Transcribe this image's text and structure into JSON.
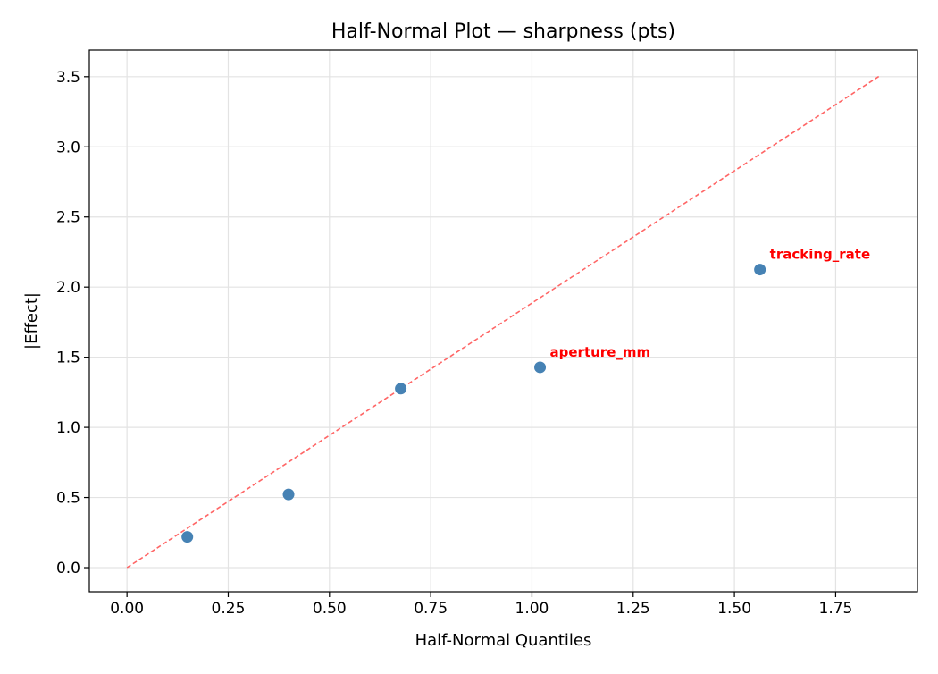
{
  "chart_data": {
    "type": "scatter",
    "title": "Half-Normal Plot — sharpness (pts)",
    "xlabel": "Half-Normal Quantiles",
    "ylabel": "|Effect|",
    "xlim": [
      -0.093,
      1.952
    ],
    "ylim": [
      -0.172,
      3.69
    ],
    "xticks": [
      "0.00",
      "0.25",
      "0.50",
      "0.75",
      "1.00",
      "1.25",
      "1.50",
      "1.75"
    ],
    "yticks": [
      "0.0",
      "0.5",
      "1.0",
      "1.5",
      "2.0",
      "2.5",
      "3.0",
      "3.5"
    ],
    "grid": true,
    "points": [
      {
        "x": 0.149,
        "y": 0.219,
        "label": ""
      },
      {
        "x": 0.399,
        "y": 0.522,
        "label": ""
      },
      {
        "x": 0.676,
        "y": 1.276,
        "label": ""
      },
      {
        "x": 1.02,
        "y": 1.428,
        "label": "aperture_mm"
      },
      {
        "x": 1.563,
        "y": 2.125,
        "label": "tracking_rate"
      }
    ],
    "reference_line": {
      "x": [
        0,
        1.862
      ],
      "y": [
        0,
        3.512
      ],
      "style": "dashed"
    },
    "colors": {
      "points": "#4682b4",
      "reference_line": "#ff6666",
      "labels": "#ff0000"
    }
  }
}
